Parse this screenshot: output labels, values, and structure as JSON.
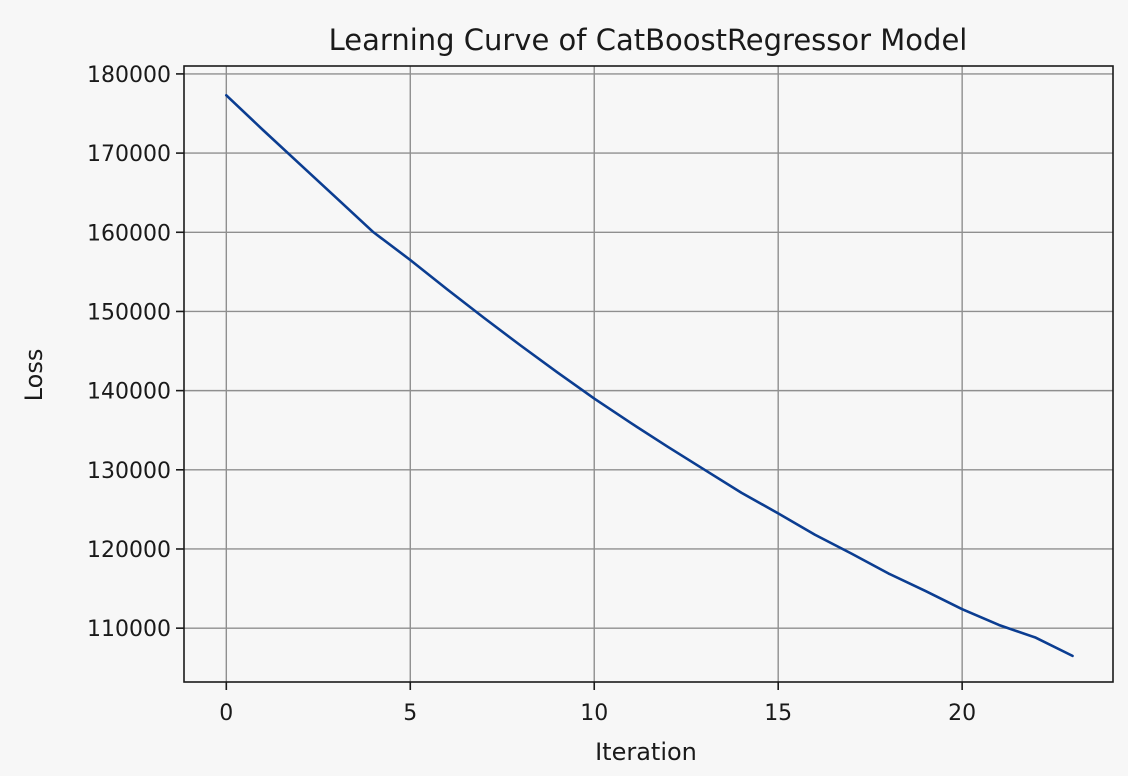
{
  "chart_data": {
    "type": "line",
    "title": "Learning Curve of CatBoostRegressor Model",
    "xlabel": "Iteration",
    "ylabel": "Loss",
    "xlim": [
      -1.15,
      24.1
    ],
    "ylim": [
      103200,
      181000
    ],
    "xticks": [
      0,
      5,
      10,
      15,
      20
    ],
    "xtick_labels": [
      "0",
      "5",
      "10",
      "15",
      "20"
    ],
    "yticks": [
      110000,
      120000,
      130000,
      140000,
      150000,
      160000,
      170000,
      180000
    ],
    "ytick_labels": [
      "110000",
      "120000",
      "130000",
      "140000",
      "150000",
      "160000",
      "170000",
      "180000"
    ],
    "grid": true,
    "legend": "none",
    "series": [
      {
        "color": "#0b3d91",
        "x": [
          0,
          1,
          2,
          3,
          4,
          5,
          6,
          7,
          8,
          9,
          10,
          11,
          12,
          13,
          14,
          15,
          16,
          17,
          18,
          19,
          20,
          21,
          22,
          23
        ],
        "y": [
          177300,
          172900,
          168600,
          164300,
          160000,
          156500,
          152800,
          149200,
          145700,
          142300,
          139000,
          135900,
          132900,
          130000,
          127100,
          124500,
          121800,
          119400,
          116900,
          114700,
          112400,
          110400,
          108800,
          106500
        ]
      }
    ]
  }
}
